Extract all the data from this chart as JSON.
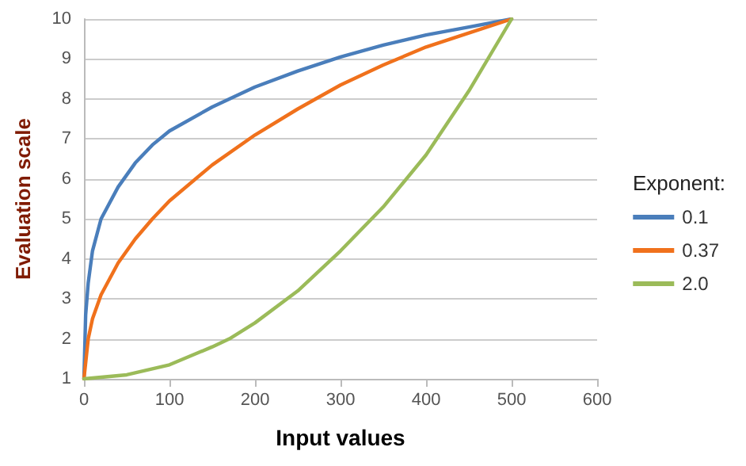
{
  "chart_data": {
    "type": "line",
    "xlabel": "Input values",
    "ylabel": "Evaluation scale",
    "legend_title": "Exponent:",
    "xlim": [
      0,
      600
    ],
    "xticks": [
      0,
      100,
      200,
      300,
      400,
      500,
      600
    ],
    "ylim": [
      1,
      10
    ],
    "yticks": [
      1,
      2,
      3,
      4,
      5,
      6,
      7,
      8,
      9,
      10
    ],
    "grid": "y",
    "legend": "right",
    "marker": "none",
    "line_style": "solid",
    "series": [
      {
        "name": "0.1",
        "color": "#4a7ebb",
        "x": [
          0,
          2,
          5,
          10,
          20,
          40,
          60,
          80,
          100,
          150,
          200,
          250,
          300,
          350,
          400,
          450,
          500
        ],
        "values": [
          1,
          2.6,
          3.4,
          4.2,
          5.0,
          5.8,
          6.4,
          6.85,
          7.2,
          7.8,
          8.3,
          8.7,
          9.05,
          9.35,
          9.6,
          9.8,
          10
        ]
      },
      {
        "name": "0.37",
        "color": "#f0711c",
        "x": [
          0,
          5,
          10,
          20,
          40,
          60,
          80,
          100,
          150,
          200,
          250,
          300,
          350,
          400,
          450,
          500
        ],
        "values": [
          1,
          2.0,
          2.5,
          3.1,
          3.9,
          4.5,
          5.0,
          5.45,
          6.35,
          7.1,
          7.75,
          8.35,
          8.85,
          9.3,
          9.65,
          10
        ]
      },
      {
        "name": "2.0",
        "color": "#9bbb59",
        "x": [
          0,
          50,
          100,
          150,
          170,
          200,
          250,
          300,
          350,
          400,
          450,
          500
        ],
        "values": [
          1,
          1.1,
          1.35,
          1.8,
          2.0,
          2.4,
          3.2,
          4.2,
          5.3,
          6.6,
          8.2,
          10
        ]
      }
    ]
  }
}
